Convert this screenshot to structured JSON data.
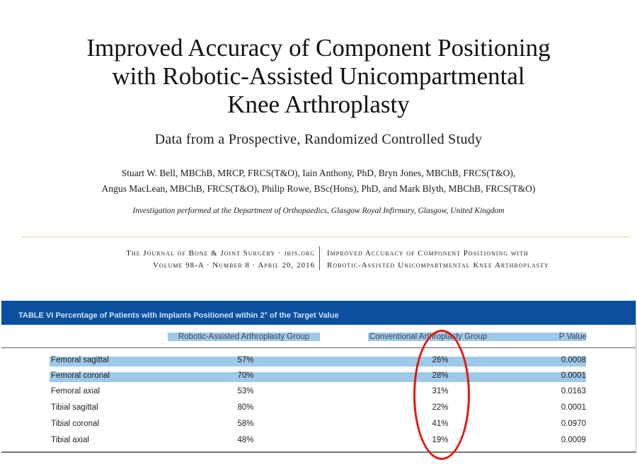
{
  "title_lines": [
    "Improved Accuracy of Component Positioning",
    "with Robotic-Assisted Unicompartmental",
    "Knee Arthroplasty"
  ],
  "subtitle": "Data from a Prospective, Randomized Controlled Study",
  "authors": [
    "Stuart W. Bell, MBChB, MRCP, FRCS(T&O), Iain Anthony, PhD, Bryn Jones, MBChB, FRCS(T&O),",
    "Angus MacLean, MBChB, FRCS(T&O), Philip Rowe, BSc(Hons), PhD, and Mark Blyth, MBChB, FRCS(T&O)"
  ],
  "affiliation": "Investigation performed at the Department of Orthopaedics, Glasgow Royal Infirmary, Glasgow, United Kingdom",
  "journal": {
    "left": [
      "The Journal of Bone & Joint Surgery · jbjs.org",
      "Volume 98-A · Number 8 · April 20, 2016"
    ],
    "right": [
      "Improved Accuracy of Component Positioning with",
      "Robotic-Assisted Unicompartmental Knee Arthroplasty"
    ]
  },
  "table": {
    "caption": "TABLE VI Percentage of Patients with Implants Positioned within 2° of the Target Value",
    "headers": [
      "Robotic-Assisted Arthroplasty Group",
      "Conventional Arthroplasty Group",
      "P Value"
    ],
    "rows": [
      {
        "label": "Femoral sagittal",
        "robotic": "57%",
        "conventional": "26%",
        "p": "0.0008",
        "highlighted": true
      },
      {
        "label": "Femoral coronal",
        "robotic": "70%",
        "conventional": "28%",
        "p": "0.0001",
        "highlighted": true
      },
      {
        "label": "Femoral axial",
        "robotic": "53%",
        "conventional": "31%",
        "p": "0.0163",
        "highlighted": false
      },
      {
        "label": "Tibial sagittal",
        "robotic": "80%",
        "conventional": "22%",
        "p": "0.0001",
        "highlighted": false
      },
      {
        "label": "Tibial coronal",
        "robotic": "58%",
        "conventional": "41%",
        "p": "0.0970",
        "highlighted": false
      },
      {
        "label": "Tibial axial",
        "robotic": "48%",
        "conventional": "19%",
        "p": "0.0009",
        "highlighted": false
      }
    ],
    "header_highlight_color": "#9ec9e8",
    "annotation": {
      "shape": "red ellipse around Conventional column",
      "color": "#e3170d"
    }
  }
}
